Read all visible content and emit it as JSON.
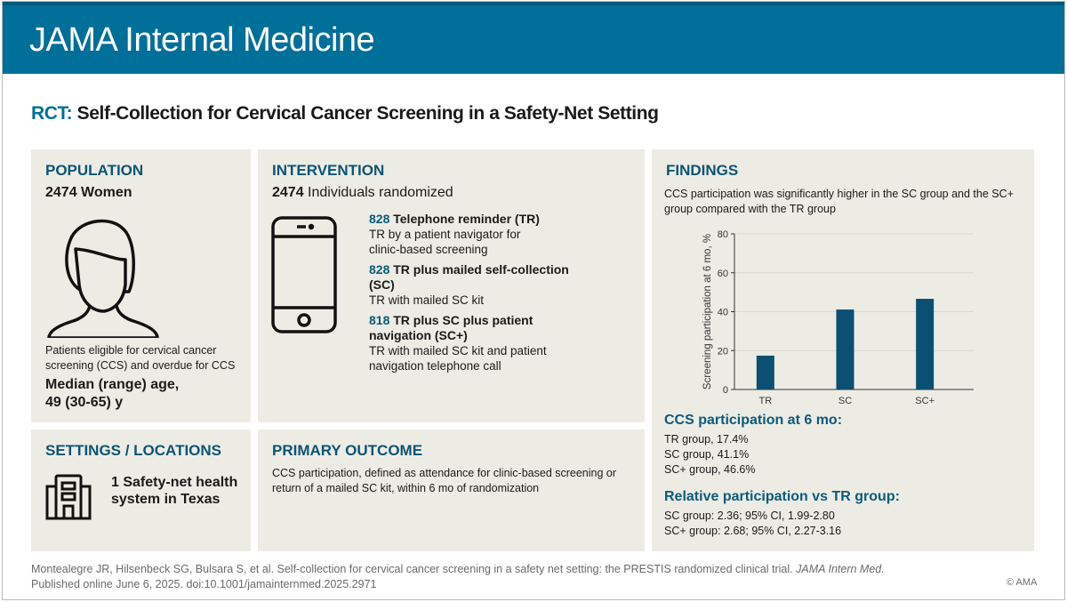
{
  "journal": "JAMA Internal Medicine",
  "title": {
    "prefix": "RCT:",
    "text": "Self-Collection for Cervical Cancer Screening in a Safety-Net Setting"
  },
  "population": {
    "heading": "POPULATION",
    "count": "2474 Women",
    "description": "Patients eligible for cervical cancer screening (CCS) and overdue for CCS",
    "age_label": "Median (range) age,",
    "age_value": "49 (30-65) y",
    "icon": "woman-icon"
  },
  "intervention": {
    "heading": "INTERVENTION",
    "count": "2474",
    "count_label": "Individuals randomized",
    "icon": "smartphone-icon",
    "arms": [
      {
        "n": "828",
        "name": "Telephone reminder (TR)",
        "desc": "TR by a patient navigator for clinic-based screening"
      },
      {
        "n": "828",
        "name": "TR plus mailed self-collection (SC)",
        "desc": "TR with mailed SC kit"
      },
      {
        "n": "818",
        "name": "TR plus SC plus patient navigation (SC+)",
        "desc": "TR with mailed SC kit and patient navigation telephone call"
      }
    ]
  },
  "settings": {
    "heading": "SETTINGS / LOCATIONS",
    "text": "1 Safety-net health system in Texas",
    "icon": "building-icon"
  },
  "primary_outcome": {
    "heading": "PRIMARY OUTCOME",
    "text": "CCS participation, defined as attendance for clinic-based screening or return of a mailed SC kit, within 6 mo of randomization"
  },
  "findings": {
    "heading": "FINDINGS",
    "summary": "CCS participation was significantly higher in the SC group and the SC+ group compared with the TR group",
    "participation_heading": "CCS participation at 6 mo:",
    "participation": [
      "TR group, 17.4%",
      "SC group, 41.1%",
      "SC+ group, 46.6%"
    ],
    "relative_heading": "Relative participation vs TR group:",
    "relative": [
      "SC group: 2.36; 95% CI, 1.99-2.80",
      "SC+ group: 2.68; 95% CI, 2.27-3.16"
    ]
  },
  "chart_data": {
    "type": "bar",
    "categories": [
      "TR",
      "SC",
      "SC+"
    ],
    "values": [
      17.4,
      41.1,
      46.6
    ],
    "ylabel": "Screening participation at 6 mo, %",
    "xlabel": "",
    "ylim": [
      0,
      80
    ],
    "yticks": [
      0,
      20,
      40,
      60,
      80
    ],
    "grid": true,
    "bar_color": "#0b4f72"
  },
  "citation": {
    "text": "Montealegre JR, Hilsenbeck SG, Bulsara S, et al. Self-collection for cervical cancer screening in a safety net setting: the PRESTIS randomized clinical trial.",
    "journal": "JAMA Intern Med.",
    "published": "Published online June 6, 2025. doi:10.1001/jamainternmed.2025.2971"
  },
  "copyright": "© AMA"
}
